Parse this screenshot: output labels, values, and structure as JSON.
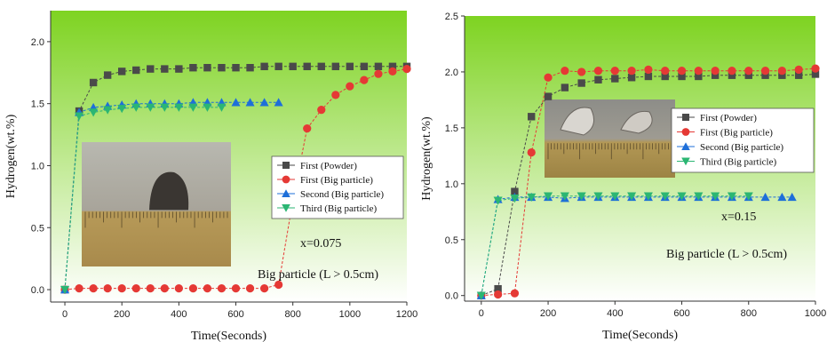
{
  "chart_data": [
    {
      "type": "scatter",
      "xlabel": "Time(Seconds)",
      "ylabel": "Hydrogen(wt.%)",
      "xlim": [
        -50,
        1200
      ],
      "ylim": [
        -0.1,
        2.25
      ],
      "xticks": [
        "0",
        "200",
        "400",
        "600",
        "800",
        "1000",
        "1200"
      ],
      "yticks": [
        "0.0",
        "0.5",
        "1.0",
        "1.5",
        "2.0"
      ],
      "xtick_values": [
        0,
        200,
        400,
        600,
        800,
        1000,
        1200
      ],
      "ytick_values": [
        0.0,
        0.5,
        1.0,
        1.5,
        2.0
      ],
      "background_gradient": [
        "#7ed321",
        "#ffffff"
      ],
      "legend_position": "center-right",
      "inset_photo": "particle on ruler",
      "annotations": [
        "x=0.075",
        "Big particle (L > 0.5cm)"
      ],
      "series": [
        {
          "name": "First (Powder)",
          "marker": "square",
          "color": "#4a4a4a",
          "x": [
            0,
            50,
            100,
            150,
            200,
            250,
            300,
            350,
            400,
            450,
            500,
            550,
            600,
            650,
            700,
            750,
            800,
            850,
            900,
            950,
            1000,
            1050,
            1100,
            1150,
            1200
          ],
          "y": [
            0,
            1.44,
            1.67,
            1.73,
            1.76,
            1.77,
            1.78,
            1.78,
            1.78,
            1.79,
            1.79,
            1.79,
            1.79,
            1.79,
            1.8,
            1.8,
            1.8,
            1.8,
            1.8,
            1.8,
            1.8,
            1.8,
            1.8,
            1.8,
            1.8
          ]
        },
        {
          "name": "First (Big particle)",
          "marker": "circle",
          "color": "#e53935",
          "x": [
            0,
            50,
            100,
            150,
            200,
            250,
            300,
            350,
            400,
            450,
            500,
            550,
            600,
            650,
            700,
            750,
            800,
            850,
            900,
            950,
            1000,
            1050,
            1100,
            1150,
            1200
          ],
          "y": [
            0,
            0.01,
            0.01,
            0.01,
            0.01,
            0.01,
            0.01,
            0.01,
            0.01,
            0.01,
            0.01,
            0.01,
            0.01,
            0.01,
            0.01,
            0.04,
            0.72,
            1.3,
            1.45,
            1.57,
            1.64,
            1.69,
            1.74,
            1.76,
            1.78
          ]
        },
        {
          "name": "Second (Big particle)",
          "marker": "triangle-up",
          "color": "#1e6fd9",
          "x": [
            0,
            50,
            100,
            150,
            200,
            250,
            300,
            350,
            400,
            450,
            500,
            550,
            600,
            650,
            700,
            750
          ],
          "y": [
            0,
            1.43,
            1.47,
            1.48,
            1.49,
            1.5,
            1.5,
            1.5,
            1.5,
            1.51,
            1.51,
            1.51,
            1.51,
            1.51,
            1.51,
            1.51
          ]
        },
        {
          "name": "Third (Big particle)",
          "marker": "triangle-down",
          "color": "#2bb673",
          "x": [
            0,
            50,
            100,
            150,
            200,
            250,
            300,
            350,
            400,
            450,
            500,
            550
          ],
          "y": [
            0,
            1.4,
            1.43,
            1.45,
            1.46,
            1.47,
            1.47,
            1.47,
            1.47,
            1.47,
            1.47,
            1.47
          ]
        }
      ]
    },
    {
      "type": "scatter",
      "xlabel": "Time(Seconds)",
      "ylabel": "Hydrogen(wt.%)",
      "xlim": [
        -50,
        1000
      ],
      "ylim": [
        -0.05,
        2.5
      ],
      "xticks": [
        "0",
        "200",
        "400",
        "600",
        "800",
        "1000"
      ],
      "yticks": [
        "0.0",
        "0.5",
        "1.0",
        "1.5",
        "2.0",
        "2.5"
      ],
      "xtick_values": [
        0,
        200,
        400,
        600,
        800,
        1000
      ],
      "ytick_values": [
        0.0,
        0.5,
        1.0,
        1.5,
        2.0,
        2.5
      ],
      "background_gradient": [
        "#7ed321",
        "#ffffff"
      ],
      "legend_position": "center-right",
      "inset_photo": "particle fragments on ruler",
      "annotations": [
        "x=0.15",
        "Big particle (L > 0.5cm)"
      ],
      "series": [
        {
          "name": "First (Powder)",
          "marker": "square",
          "color": "#4a4a4a",
          "x": [
            0,
            50,
            100,
            150,
            200,
            250,
            300,
            350,
            400,
            450,
            500,
            550,
            600,
            650,
            700,
            750,
            800,
            850,
            900,
            950,
            1000
          ],
          "y": [
            0,
            0.06,
            0.93,
            1.6,
            1.78,
            1.86,
            1.9,
            1.93,
            1.94,
            1.95,
            1.96,
            1.96,
            1.96,
            1.96,
            1.97,
            1.97,
            1.97,
            1.97,
            1.97,
            1.97,
            1.98
          ]
        },
        {
          "name": "First (Big particle)",
          "marker": "circle",
          "color": "#e53935",
          "x": [
            0,
            50,
            100,
            150,
            200,
            250,
            300,
            350,
            400,
            450,
            500,
            550,
            600,
            650,
            700,
            750,
            800,
            850,
            900,
            950,
            1000
          ],
          "y": [
            0,
            0.01,
            0.02,
            1.28,
            1.95,
            2.01,
            2.0,
            2.01,
            2.01,
            2.01,
            2.02,
            2.01,
            2.01,
            2.01,
            2.01,
            2.01,
            2.01,
            2.01,
            2.01,
            2.02,
            2.03
          ]
        },
        {
          "name": "Second (Big particle)",
          "marker": "triangle-up",
          "color": "#1e6fd9",
          "x": [
            0,
            50,
            100,
            150,
            200,
            250,
            300,
            350,
            400,
            450,
            500,
            550,
            600,
            650,
            700,
            750,
            800,
            850,
            900,
            930
          ],
          "y": [
            0,
            0.86,
            0.88,
            0.88,
            0.88,
            0.87,
            0.88,
            0.88,
            0.88,
            0.88,
            0.88,
            0.88,
            0.88,
            0.88,
            0.88,
            0.88,
            0.88,
            0.88,
            0.88,
            0.88
          ]
        },
        {
          "name": "Third (Big particle)",
          "marker": "triangle-down",
          "color": "#2bb673",
          "x": [
            0,
            50,
            100,
            150,
            200,
            250,
            300,
            350,
            400,
            450,
            500,
            550,
            600,
            650,
            700,
            750,
            800
          ],
          "y": [
            0,
            0.85,
            0.87,
            0.88,
            0.89,
            0.89,
            0.89,
            0.89,
            0.89,
            0.89,
            0.89,
            0.89,
            0.89,
            0.89,
            0.89,
            0.89,
            0.89
          ]
        }
      ]
    }
  ]
}
